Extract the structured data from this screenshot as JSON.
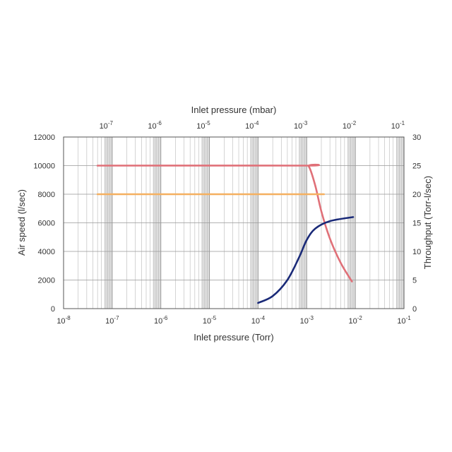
{
  "chart_data": {
    "type": "line",
    "title": "",
    "xlabel": "Inlet pressure (Torr)",
    "x2label": "Inlet pressure (mbar)",
    "ylabel": "Air speed (l/sec)",
    "y2label": "Throughput (Torr-l/sec)",
    "x_scale": "log",
    "xlim": [
      1e-08,
      1e-05
    ],
    "x_ticks": [
      "10-8",
      "10-7",
      "10-6",
      "10-5",
      "10-4",
      "10-3",
      "10-2",
      "10-1"
    ],
    "x2_ticks": [
      "10-7",
      "10-6",
      "10-5",
      "10-4",
      "10-3",
      "10-2",
      "10-1"
    ],
    "ylim": [
      0,
      12000
    ],
    "y_ticks": [
      "0",
      "2000",
      "4000",
      "6000",
      "8000",
      "10000",
      "12000"
    ],
    "y2lim": [
      0,
      30
    ],
    "y2_ticks": [
      "0",
      "5",
      "10",
      "15",
      "20",
      "25",
      "30"
    ],
    "grid": true,
    "colors": {
      "red": "#e07078",
      "orange": "#f5b060",
      "navy": "#1a2a78",
      "grid": "#b8b8b8",
      "band": "#dddddd"
    },
    "series": [
      {
        "axis": "left",
        "color": "#e07078",
        "points": [
          [
            5e-08,
            10000
          ],
          [
            0.0008,
            10000
          ],
          [
            0.0011,
            9950
          ],
          [
            0.0015,
            8600
          ],
          [
            0.002,
            6800
          ],
          [
            0.003,
            4900
          ],
          [
            0.005,
            3200
          ],
          [
            0.0085,
            1900
          ]
        ]
      },
      {
        "axis": "left",
        "color": "#f5b060",
        "points": [
          [
            5e-08,
            8000
          ],
          [
            0.001,
            8000
          ],
          [
            0.0013,
            8000
          ]
        ]
      },
      {
        "axis": "right",
        "color": "#1a2a78",
        "points": [
          [
            0.0001,
            1.0
          ],
          [
            0.0002,
            2.2
          ],
          [
            0.0004,
            5.0
          ],
          [
            0.0007,
            9.0
          ],
          [
            0.001,
            12.0
          ],
          [
            0.0015,
            14.0
          ],
          [
            0.003,
            15.3
          ],
          [
            0.009,
            16.0
          ]
        ]
      }
    ]
  }
}
